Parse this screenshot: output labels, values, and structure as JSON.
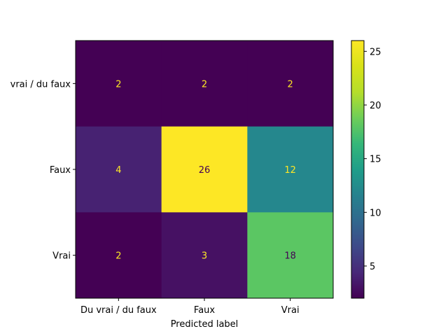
{
  "chart_data": {
    "type": "heatmap",
    "title": "",
    "xlabel": "Predicted label",
    "ylabel": "",
    "x_categories": [
      "Du vrai / du faux",
      "Faux",
      "Vrai"
    ],
    "y_categories": [
      "vrai / du faux",
      "Faux",
      "Vrai"
    ],
    "values": [
      [
        2,
        2,
        2
      ],
      [
        4,
        26,
        12
      ],
      [
        2,
        3,
        18
      ]
    ],
    "colormap": "viridis",
    "color_range": [
      2,
      26
    ],
    "colorbar_ticks": [
      5,
      10,
      15,
      20,
      25
    ],
    "annotation_colors": {
      "low": "#fde725",
      "high": "#440154"
    }
  }
}
